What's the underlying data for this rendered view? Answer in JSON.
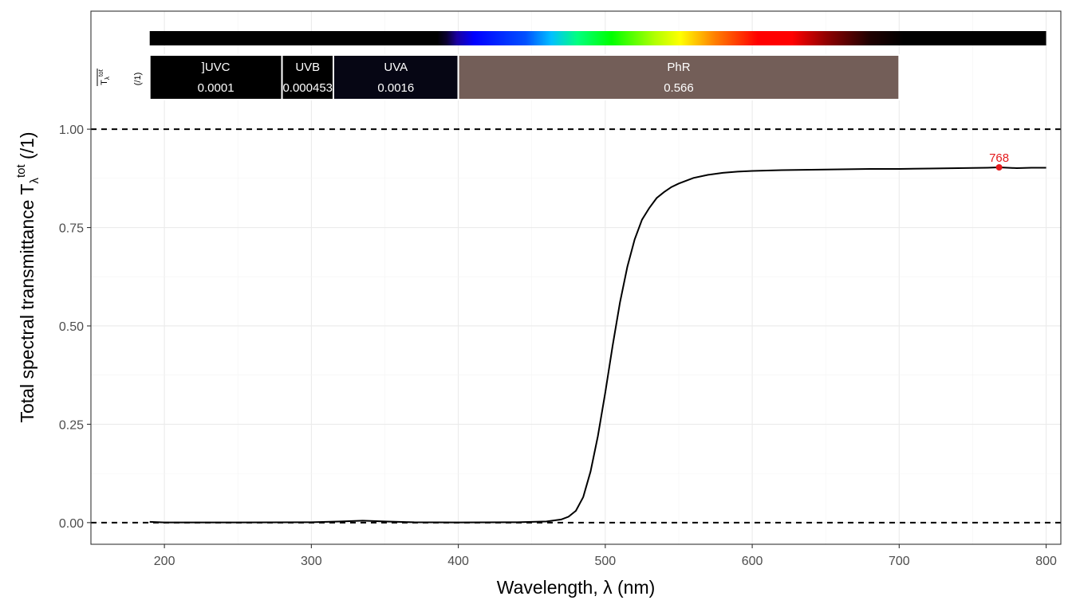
{
  "chart_data": {
    "type": "line",
    "xlabel": "Wavelength, λ (nm)",
    "ylabel": {
      "prefix": "Total  spectral  transmittance  T",
      "sub": "λ",
      "sup": "tot",
      "suffix": "  (/1)"
    },
    "xlim": [
      150,
      810
    ],
    "ylim": [
      -0.055,
      1.3
    ],
    "xticks": [
      200,
      300,
      400,
      500,
      600,
      700,
      800
    ],
    "yticks": [
      0,
      0.25,
      0.5,
      0.75,
      1
    ],
    "ytick_labels": [
      "0.00",
      "0.25",
      "0.50",
      "0.75",
      "1.00"
    ],
    "grid": true,
    "reference_lines": [
      0,
      1
    ],
    "series": [
      {
        "x": [
          190,
          200,
          250,
          300,
          320,
          335,
          350,
          370,
          400,
          440,
          460,
          470,
          475,
          480,
          485,
          490,
          495,
          500,
          505,
          510,
          515,
          520,
          525,
          530,
          535,
          540,
          545,
          550,
          560,
          570,
          580,
          590,
          600,
          620,
          640,
          660,
          680,
          700,
          720,
          740,
          760,
          768,
          780,
          790,
          800
        ],
        "y": [
          0.002,
          0.0005,
          0.0005,
          0.001,
          0.003,
          0.005,
          0.003,
          0.001,
          0.0005,
          0.001,
          0.003,
          0.008,
          0.015,
          0.03,
          0.065,
          0.13,
          0.22,
          0.33,
          0.45,
          0.56,
          0.65,
          0.72,
          0.77,
          0.8,
          0.825,
          0.84,
          0.853,
          0.862,
          0.876,
          0.884,
          0.889,
          0.892,
          0.894,
          0.896,
          0.897,
          0.898,
          0.899,
          0.899,
          0.9,
          0.901,
          0.902,
          0.903,
          0.901,
          0.902,
          0.902
        ]
      }
    ],
    "annotations": [
      {
        "x": 768,
        "y": 0.903,
        "label": "768",
        "color": "#e41a1c"
      }
    ],
    "wavebands": [
      {
        "name": "]UVC",
        "from": 190,
        "to": 280,
        "value": "0.0001",
        "color": "#000000"
      },
      {
        "name": "UVB",
        "from": 280,
        "to": 315,
        "value": "0.000453",
        "color": "#000000"
      },
      {
        "name": "UVA",
        "from": 315,
        "to": 400,
        "value": "0.0016",
        "color": "#060614"
      },
      {
        "name": "PhR",
        "from": 400,
        "to": 700,
        "value": "0.566",
        "color": "#735e58"
      }
    ],
    "waveband_axis_label": {
      "main": "T",
      "sub": "λ",
      "sup": "tot",
      "unit": "(/1)"
    },
    "color_strip": {
      "from": 190,
      "to": 800
    }
  }
}
